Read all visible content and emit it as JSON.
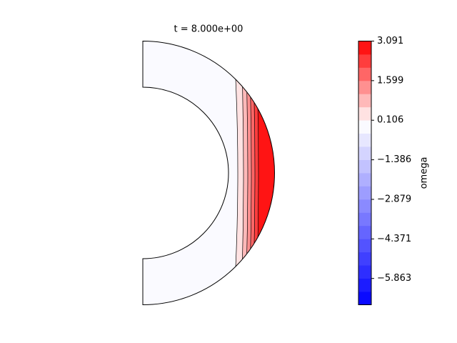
{
  "chart_data": {
    "type": "contourf",
    "title": "t = 8.000e+00",
    "colorbar": {
      "label": "omega",
      "ylim": [
        -6.855,
        3.091
      ],
      "levels": [
        -6.855,
        -6.358,
        -5.86,
        -5.363,
        -4.866,
        -4.369,
        -3.871,
        -3.374,
        -2.877,
        -2.379,
        -1.882,
        -1.385,
        -0.887,
        -0.39,
        0.107,
        0.605,
        1.102,
        1.599,
        2.096,
        2.594,
        3.091
      ],
      "colors": [
        "#0a0aff",
        "#1c1cff",
        "#2e2eff",
        "#4040ff",
        "#5353ff",
        "#6565ff",
        "#7878ff",
        "#8a8aff",
        "#9d9dff",
        "#afafff",
        "#c2c2ff",
        "#d4d4ff",
        "#e7e7ff",
        "#fafaff",
        "#ffe2e2",
        "#ffb9b9",
        "#ff9090",
        "#ff6666",
        "#ff3d3d",
        "#ff1414"
      ],
      "yticks": [
        3.091,
        1.599,
        0.106,
        {
          "value": -1.386,
          "label": "−1.386"
        },
        {
          "value": -2.879,
          "label": "−2.879"
        },
        {
          "value": -4.371,
          "label": "−4.371"
        },
        {
          "value": -5.863,
          "label": "−5.863"
        }
      ]
    }
  }
}
